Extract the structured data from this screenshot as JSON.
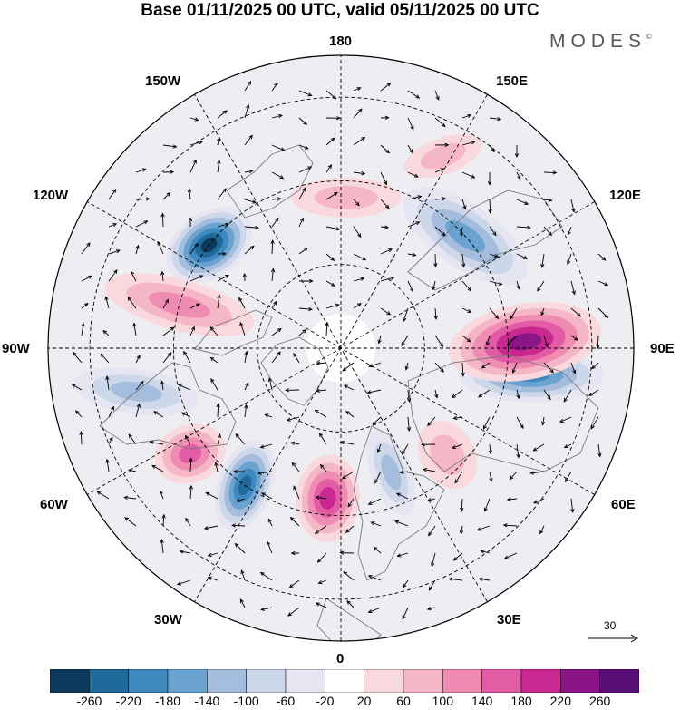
{
  "title": "Base 01/11/2025 00 UTC, valid 05/11/2025 00 UTC",
  "logo": "MODES",
  "logo_mark": "©",
  "longitude_labels": {
    "top": "180",
    "top_left": "150W",
    "top_right": "150E",
    "upper_left": "120W",
    "upper_right": "120E",
    "left": "90W",
    "right": "90E",
    "lower_left": "60W",
    "lower_right": "60E",
    "bottom_left": "30W",
    "bottom_right": "30E",
    "bottom": "0"
  },
  "reference_vector": {
    "label": "30"
  },
  "colorbar": {
    "labels": [
      "-260",
      "-220",
      "-180",
      "-140",
      "-100",
      "-60",
      "-20",
      "20",
      "60",
      "100",
      "140",
      "180",
      "220",
      "260"
    ],
    "colors": [
      "#0d3a5c",
      "#1f6a99",
      "#3f88c0",
      "#6aa3cf",
      "#a5bddd",
      "#cdd7ea",
      "#e6e5f2",
      "#ffffff",
      "#f9d9de",
      "#f5b7c7",
      "#ee8cb2",
      "#e25ca5",
      "#c8288f",
      "#8a1586",
      "#5a0f78"
    ]
  },
  "anomalies": [
    {
      "lon": -128,
      "colat": 40,
      "value": -260,
      "rx": 52,
      "ry": 36,
      "rot": -35
    },
    {
      "lon": -35,
      "colat": 40,
      "value": -220,
      "rx": 30,
      "ry": 52,
      "rot": 20
    },
    {
      "lon": 82,
      "colat": 46,
      "value": -180,
      "rx": 80,
      "ry": 30,
      "rot": 0
    },
    {
      "lon": 132,
      "colat": 40,
      "value": -140,
      "rx": 80,
      "ry": 35,
      "rot": 35
    },
    {
      "lon": -78,
      "colat": 50,
      "value": -100,
      "rx": 70,
      "ry": 25,
      "rot": 8
    },
    {
      "lon": 22,
      "colat": 32,
      "value": -100,
      "rx": 22,
      "ry": 50,
      "rot": -20
    },
    {
      "lon": 92,
      "colat": 44,
      "value": 220,
      "rx": 85,
      "ry": 42,
      "rot": -10
    },
    {
      "lon": -5,
      "colat": 36,
      "value": 180,
      "rx": 35,
      "ry": 48,
      "rot": 5
    },
    {
      "lon": -55,
      "colat": 44,
      "value": 140,
      "rx": 40,
      "ry": 32,
      "rot": -20
    },
    {
      "lon": -105,
      "colat": 40,
      "value": 100,
      "rx": 85,
      "ry": 28,
      "rot": 15
    },
    {
      "lon": 178,
      "colat": 36,
      "value": 60,
      "rx": 60,
      "ry": 22,
      "rot": 0
    },
    {
      "lon": 152,
      "colat": 52,
      "value": 60,
      "rx": 45,
      "ry": 20,
      "rot": -20
    },
    {
      "lon": 45,
      "colat": 36,
      "value": 60,
      "rx": 30,
      "ry": 40,
      "rot": -30
    }
  ]
}
